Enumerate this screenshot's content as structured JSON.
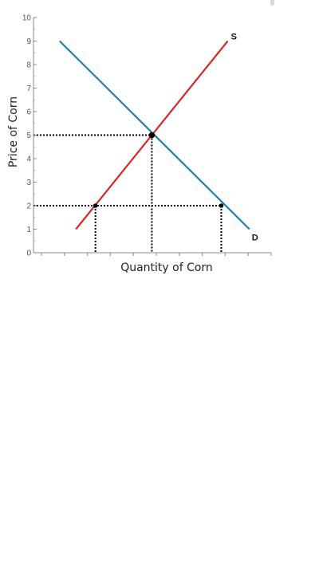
{
  "chart_data": {
    "type": "line",
    "xlabel": "Quantity of Corn",
    "ylabel": "Price of Corn",
    "ylim": [
      0,
      10
    ],
    "xlim": [
      0,
      10
    ],
    "yticks": [
      "0",
      "1",
      "2",
      "3",
      "4",
      "5",
      "6",
      "7",
      "8",
      "9",
      "10"
    ],
    "x_tick_count": 11,
    "grid": false,
    "series": [
      {
        "name": "S",
        "color": "#d62728",
        "points": [
          [
            1,
            1
          ],
          [
            8,
            9
          ]
        ]
      },
      {
        "name": "D",
        "color": "#1f7fae",
        "points": [
          [
            0.25,
            9
          ],
          [
            9,
            1
          ]
        ]
      }
    ],
    "markers": [
      {
        "x": 1.9,
        "y": 2
      },
      {
        "x": 4.5,
        "y": 5
      },
      {
        "x": 7.7,
        "y": 2
      }
    ],
    "reference_lines": [
      {
        "orientation": "horizontal",
        "y": 5,
        "from_x": 0,
        "to_x": 4.5
      },
      {
        "orientation": "horizontal",
        "y": 2,
        "from_x": 0,
        "to_x": 7.7
      },
      {
        "orientation": "vertical",
        "x": 1.9,
        "from_y": 0,
        "to_y": 2
      },
      {
        "orientation": "vertical",
        "x": 4.5,
        "from_y": 0,
        "to_y": 5
      },
      {
        "orientation": "vertical",
        "x": 7.7,
        "from_y": 0,
        "to_y": 2
      }
    ],
    "reference_line_color": "#000000",
    "marker_color": "#000000"
  }
}
